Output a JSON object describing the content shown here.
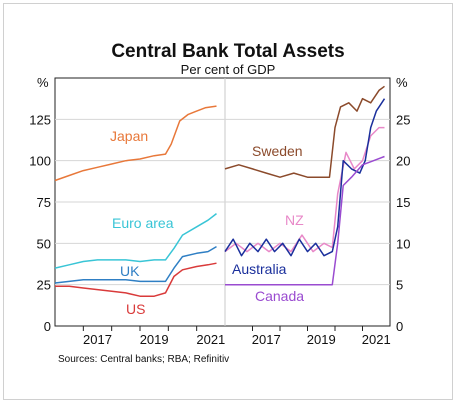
{
  "chart_data": {
    "type": "line",
    "title": "Central Bank Total Assets",
    "subtitle": "Per cent of GDP",
    "source": "Sources: Central banks; RBA; Refinitiv",
    "left_panel": {
      "unit": "%",
      "ylim": [
        0,
        150
      ],
      "yticks": [
        0,
        25,
        50,
        75,
        100,
        125
      ],
      "xticks": [
        "2017",
        "2019",
        "2021"
      ],
      "series": [
        {
          "name": "Japan",
          "color": "#e8783a",
          "points": [
            [
              2016.0,
              88
            ],
            [
              2016.5,
              91
            ],
            [
              2017.0,
              94
            ],
            [
              2017.5,
              96
            ],
            [
              2018.0,
              98
            ],
            [
              2018.5,
              100
            ],
            [
              2019.0,
              101
            ],
            [
              2019.5,
              103
            ],
            [
              2019.9,
              104
            ],
            [
              2020.1,
              110
            ],
            [
              2020.4,
              124
            ],
            [
              2020.7,
              128
            ],
            [
              2021.0,
              130
            ],
            [
              2021.3,
              132
            ],
            [
              2021.7,
              133
            ]
          ]
        },
        {
          "name": "Euro area",
          "color": "#39c5d6",
          "points": [
            [
              2016.0,
              35
            ],
            [
              2016.5,
              37
            ],
            [
              2017.0,
              39
            ],
            [
              2017.5,
              40
            ],
            [
              2018.0,
              40
            ],
            [
              2018.5,
              40
            ],
            [
              2019.0,
              39
            ],
            [
              2019.5,
              40
            ],
            [
              2019.9,
              40
            ],
            [
              2020.2,
              47
            ],
            [
              2020.5,
              55
            ],
            [
              2021.0,
              60
            ],
            [
              2021.4,
              64
            ],
            [
              2021.7,
              68
            ]
          ]
        },
        {
          "name": "UK",
          "color": "#2f7fc4",
          "points": [
            [
              2016.0,
              26
            ],
            [
              2016.5,
              27
            ],
            [
              2017.0,
              28
            ],
            [
              2017.5,
              28
            ],
            [
              2018.0,
              28
            ],
            [
              2018.5,
              28
            ],
            [
              2019.0,
              27
            ],
            [
              2019.5,
              27
            ],
            [
              2019.9,
              27
            ],
            [
              2020.2,
              35
            ],
            [
              2020.5,
              42
            ],
            [
              2021.0,
              44
            ],
            [
              2021.4,
              45
            ],
            [
              2021.7,
              48
            ]
          ]
        },
        {
          "name": "US",
          "color": "#d93a3a",
          "points": [
            [
              2016.0,
              24
            ],
            [
              2016.5,
              24
            ],
            [
              2017.0,
              23
            ],
            [
              2017.5,
              22
            ],
            [
              2018.0,
              21
            ],
            [
              2018.5,
              20
            ],
            [
              2019.0,
              18
            ],
            [
              2019.5,
              18
            ],
            [
              2019.9,
              20
            ],
            [
              2020.2,
              30
            ],
            [
              2020.5,
              34
            ],
            [
              2021.0,
              36
            ],
            [
              2021.4,
              37
            ],
            [
              2021.7,
              38
            ]
          ]
        }
      ]
    },
    "right_panel": {
      "unit": "%",
      "ylim": [
        0,
        30
      ],
      "yticks": [
        0,
        5,
        10,
        15,
        20,
        25
      ],
      "xticks": [
        "2017",
        "2019",
        "2021"
      ],
      "series": [
        {
          "name": "Sweden",
          "color": "#8b4a2b",
          "points": [
            [
              2016.0,
              19
            ],
            [
              2016.5,
              19.5
            ],
            [
              2017.0,
              19
            ],
            [
              2017.5,
              18.5
            ],
            [
              2018.0,
              18
            ],
            [
              2018.5,
              18.5
            ],
            [
              2019.0,
              18
            ],
            [
              2019.5,
              18
            ],
            [
              2019.8,
              18
            ],
            [
              2020.0,
              24
            ],
            [
              2020.2,
              26.5
            ],
            [
              2020.5,
              27
            ],
            [
              2020.8,
              26
            ],
            [
              2021.0,
              27.5
            ],
            [
              2021.3,
              27
            ],
            [
              2021.6,
              28.5
            ],
            [
              2021.8,
              29
            ]
          ]
        },
        {
          "name": "NZ",
          "color": "#e888c8",
          "points": [
            [
              2016.0,
              9
            ],
            [
              2016.4,
              10
            ],
            [
              2016.8,
              9
            ],
            [
              2017.2,
              10
            ],
            [
              2017.6,
              9
            ],
            [
              2018.0,
              10
            ],
            [
              2018.4,
              9
            ],
            [
              2018.8,
              11
            ],
            [
              2019.2,
              9
            ],
            [
              2019.6,
              10
            ],
            [
              2019.9,
              9.5
            ],
            [
              2020.1,
              16
            ],
            [
              2020.4,
              21
            ],
            [
              2020.7,
              19
            ],
            [
              2021.0,
              20
            ],
            [
              2021.3,
              23
            ],
            [
              2021.6,
              24
            ],
            [
              2021.8,
              24
            ]
          ]
        },
        {
          "name": "Australia",
          "color": "#1a2f9c",
          "points": [
            [
              2016.0,
              9
            ],
            [
              2016.3,
              10.5
            ],
            [
              2016.6,
              8.5
            ],
            [
              2016.9,
              10
            ],
            [
              2017.2,
              9
            ],
            [
              2017.5,
              10.5
            ],
            [
              2017.8,
              9
            ],
            [
              2018.1,
              10
            ],
            [
              2018.4,
              8.5
            ],
            [
              2018.7,
              10.5
            ],
            [
              2019.0,
              9
            ],
            [
              2019.3,
              10
            ],
            [
              2019.6,
              8.5
            ],
            [
              2019.9,
              9
            ],
            [
              2020.1,
              12
            ],
            [
              2020.3,
              20
            ],
            [
              2020.6,
              19
            ],
            [
              2020.9,
              18.5
            ],
            [
              2021.1,
              20
            ],
            [
              2021.3,
              24
            ],
            [
              2021.5,
              26
            ],
            [
              2021.8,
              27.5
            ]
          ]
        },
        {
          "name": "Canada",
          "color": "#9a4bd0",
          "points": [
            [
              2016.0,
              5
            ],
            [
              2016.5,
              5
            ],
            [
              2017.0,
              5
            ],
            [
              2017.5,
              5
            ],
            [
              2018.0,
              5
            ],
            [
              2018.5,
              5
            ],
            [
              2019.0,
              5
            ],
            [
              2019.5,
              5
            ],
            [
              2019.9,
              5
            ],
            [
              2020.1,
              10
            ],
            [
              2020.3,
              17
            ],
            [
              2020.6,
              18
            ],
            [
              2021.0,
              19.5
            ],
            [
              2021.4,
              20
            ],
            [
              2021.8,
              20.5
            ]
          ]
        }
      ]
    }
  }
}
